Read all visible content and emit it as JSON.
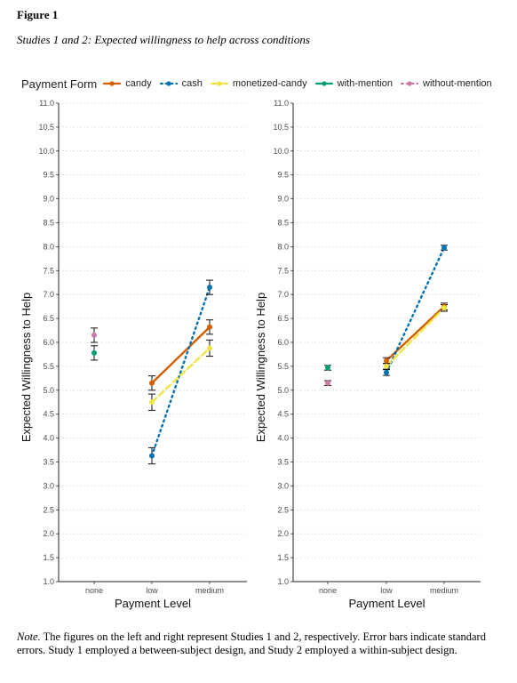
{
  "figure_label": "Figure 1",
  "figure_title": "Studies 1 and 2: Expected willingness to help across conditions",
  "legend": {
    "title": "Payment Form",
    "items": [
      {
        "label": "candy",
        "color": "#D55E00",
        "dash": "solid"
      },
      {
        "label": "cash",
        "color": "#0072B2",
        "dash": "dotted"
      },
      {
        "label": "monetized-candy",
        "color": "#F0E442",
        "dash": "dashed"
      },
      {
        "label": "with-mention",
        "color": "#009E73",
        "dash": "solid"
      },
      {
        "label": "without-mention",
        "color": "#CC79A7",
        "dash": "dotted"
      }
    ]
  },
  "note": {
    "label": "Note.",
    "text": " The figures on the left and right represent Studies 1 and 2, respectively. Error bars indicate standard errors. Study 1 employed a between-subject design, and Study 2 employed a within-subject design."
  },
  "chart_data": [
    {
      "type": "line",
      "xlabel": "Payment Level",
      "ylabel": "Expected Willingness to Help",
      "categories": [
        "none",
        "low",
        "medium"
      ],
      "ylim": [
        1.0,
        11.0
      ],
      "yticks": [
        "1.0",
        "1.5",
        "2.0",
        "2.5",
        "3.0",
        "3.5",
        "4.0",
        "4.5",
        "5.0",
        "5.5",
        "6.0",
        "6.5",
        "7.0",
        "7.5",
        "8.0",
        "8.5",
        "9.0",
        "9.5",
        "10.0",
        "10.5",
        "11.0"
      ],
      "grid": "horizontal dotted",
      "series": [
        {
          "name": "candy",
          "points": [
            {
              "x": "low",
              "y": 5.15,
              "se": 0.15
            },
            {
              "x": "medium",
              "y": 6.32,
              "se": 0.15
            }
          ]
        },
        {
          "name": "cash",
          "points": [
            {
              "x": "low",
              "y": 3.63,
              "se": 0.17
            },
            {
              "x": "medium",
              "y": 7.15,
              "se": 0.15
            }
          ]
        },
        {
          "name": "monetized-candy",
          "points": [
            {
              "x": "low",
              "y": 4.75,
              "se": 0.17
            },
            {
              "x": "medium",
              "y": 5.88,
              "se": 0.17
            }
          ]
        },
        {
          "name": "with-mention",
          "points": [
            {
              "x": "none",
              "y": 5.78,
              "se": 0.15
            }
          ]
        },
        {
          "name": "without-mention",
          "points": [
            {
              "x": "none",
              "y": 6.15,
              "se": 0.15
            }
          ]
        }
      ]
    },
    {
      "type": "line",
      "xlabel": "Payment Level",
      "ylabel": "Expected Willingness to Help",
      "categories": [
        "none",
        "low",
        "medium"
      ],
      "ylim": [
        1.0,
        11.0
      ],
      "yticks": [
        "1.0",
        "1.5",
        "2.0",
        "2.5",
        "3.0",
        "3.5",
        "4.0",
        "4.5",
        "5.0",
        "5.5",
        "6.0",
        "6.5",
        "7.0",
        "7.5",
        "8.0",
        "8.5",
        "9.0",
        "9.5",
        "10.0",
        "10.5",
        "11.0"
      ],
      "grid": "horizontal dotted",
      "series": [
        {
          "name": "candy",
          "points": [
            {
              "x": "low",
              "y": 5.62,
              "se": 0.06
            },
            {
              "x": "medium",
              "y": 6.75,
              "se": 0.07
            }
          ]
        },
        {
          "name": "cash",
          "points": [
            {
              "x": "low",
              "y": 5.37,
              "se": 0.06
            },
            {
              "x": "medium",
              "y": 7.98,
              "se": 0.05
            }
          ]
        },
        {
          "name": "monetized-candy",
          "points": [
            {
              "x": "low",
              "y": 5.5,
              "se": 0.06
            },
            {
              "x": "medium",
              "y": 6.72,
              "se": 0.07
            }
          ]
        },
        {
          "name": "with-mention",
          "points": [
            {
              "x": "none",
              "y": 5.47,
              "se": 0.05
            }
          ]
        },
        {
          "name": "without-mention",
          "points": [
            {
              "x": "none",
              "y": 5.15,
              "se": 0.05
            }
          ]
        }
      ]
    }
  ]
}
